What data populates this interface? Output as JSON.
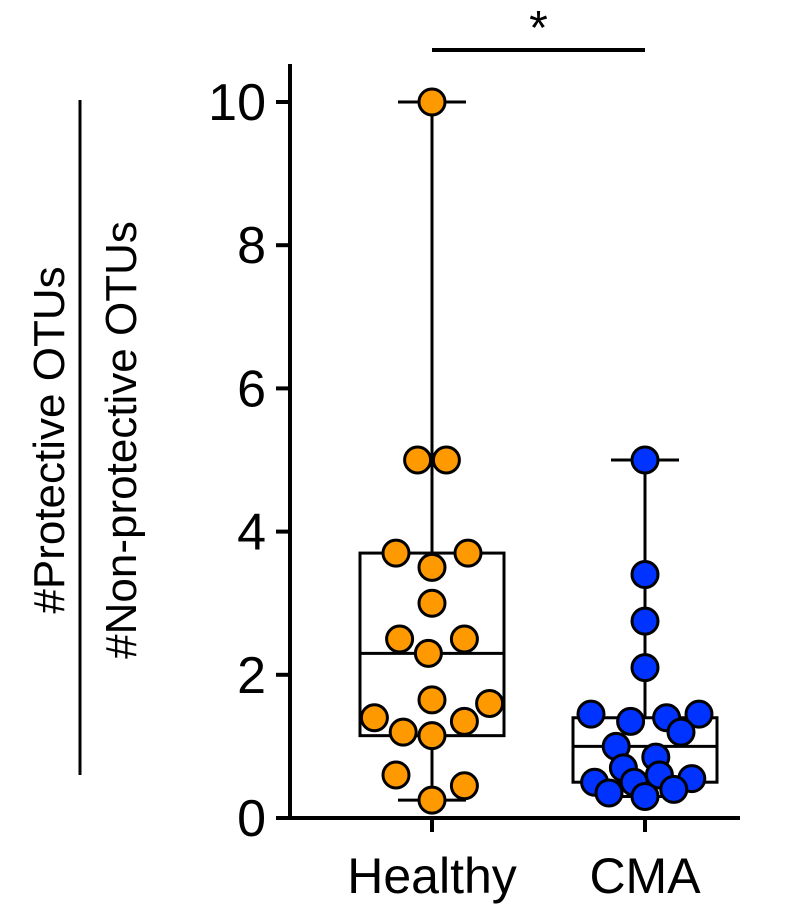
{
  "chart_data": {
    "type": "box",
    "ylabel": {
      "numerator": "#Protective OTUs",
      "denominator": "#Non-protective OTUs"
    },
    "ylim": [
      0,
      10
    ],
    "yticks": [
      "0",
      "2",
      "4",
      "6",
      "8",
      "10"
    ],
    "categories": [
      "Healthy",
      "CMA"
    ],
    "significance": "*",
    "groups": [
      {
        "name": "Healthy",
        "color": "#FF9900",
        "box": {
          "min": 0.25,
          "q1": 1.15,
          "median": 2.3,
          "q3": 3.7,
          "max": 10
        },
        "points": [
          {
            "x": 0.0,
            "y": 10
          },
          {
            "x": -0.2,
            "y": 5.0
          },
          {
            "x": 0.2,
            "y": 5.0
          },
          {
            "x": -0.5,
            "y": 3.7
          },
          {
            "x": 0.0,
            "y": 3.5
          },
          {
            "x": 0.5,
            "y": 3.7
          },
          {
            "x": 0.0,
            "y": 3.0
          },
          {
            "x": -0.45,
            "y": 2.5
          },
          {
            "x": -0.05,
            "y": 2.3
          },
          {
            "x": 0.45,
            "y": 2.5
          },
          {
            "x": 0.0,
            "y": 1.65
          },
          {
            "x": 0.8,
            "y": 1.6
          },
          {
            "x": -0.8,
            "y": 1.4
          },
          {
            "x": -0.4,
            "y": 1.2
          },
          {
            "x": 0.0,
            "y": 1.15
          },
          {
            "x": 0.45,
            "y": 1.35
          },
          {
            "x": -0.5,
            "y": 0.6
          },
          {
            "x": 0.45,
            "y": 0.45
          },
          {
            "x": 0.0,
            "y": 0.25
          }
        ]
      },
      {
        "name": "CMA",
        "color": "#0033FF",
        "box": {
          "min": 0.3,
          "q1": 0.5,
          "median": 1.0,
          "q3": 1.4,
          "max": 5
        },
        "points": [
          {
            "x": 0.0,
            "y": 5.0
          },
          {
            "x": 0.0,
            "y": 3.4
          },
          {
            "x": 0.0,
            "y": 2.75
          },
          {
            "x": 0.0,
            "y": 2.1
          },
          {
            "x": -0.75,
            "y": 1.45
          },
          {
            "x": -0.2,
            "y": 1.35
          },
          {
            "x": 0.3,
            "y": 1.4
          },
          {
            "x": 0.75,
            "y": 1.45
          },
          {
            "x": 0.5,
            "y": 1.2
          },
          {
            "x": -0.4,
            "y": 1.0
          },
          {
            "x": 0.15,
            "y": 0.85
          },
          {
            "x": -0.3,
            "y": 0.7
          },
          {
            "x": 0.2,
            "y": 0.6
          },
          {
            "x": -0.7,
            "y": 0.5
          },
          {
            "x": -0.15,
            "y": 0.5
          },
          {
            "x": 0.65,
            "y": 0.55
          },
          {
            "x": -0.5,
            "y": 0.35
          },
          {
            "x": 0.0,
            "y": 0.3
          },
          {
            "x": 0.4,
            "y": 0.4
          }
        ]
      }
    ]
  }
}
